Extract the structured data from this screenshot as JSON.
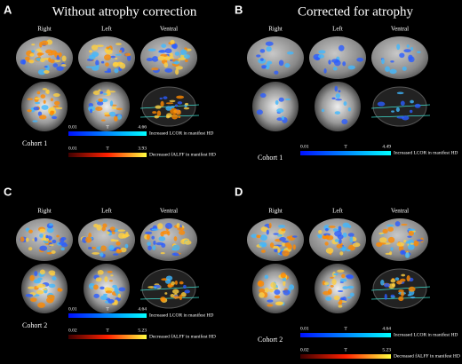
{
  "panels": [
    {
      "letter": "A",
      "title": "Without atrophy correction",
      "views": [
        "Right",
        "Left",
        "Ventral"
      ],
      "cohort": "Cohort 1",
      "colorbars": [
        {
          "min": "0.01",
          "stat": "T",
          "max": "4.66",
          "caption": "Increased LCOR in manifest HD"
        },
        {
          "min": "0.01",
          "stat": "T",
          "max": "3.93",
          "caption": "Decreased fALFF in manifest HD"
        }
      ]
    },
    {
      "letter": "B",
      "title": "Corrected for atrophy",
      "views": [
        "Right",
        "Left",
        "Ventral"
      ],
      "cohort": "Cohort 1",
      "colorbars": [
        {
          "min": "0.01",
          "stat": "T",
          "max": "4.49",
          "caption": "Increased LCOR in manifest HD"
        }
      ]
    },
    {
      "letter": "C",
      "views": [
        "Right",
        "Left",
        "Ventral"
      ],
      "cohort": "Cohort 2",
      "colorbars": [
        {
          "min": "0.01",
          "stat": "T",
          "max": "4.64",
          "caption": "Increased LCOR in manifest HD"
        },
        {
          "min": "0.02",
          "stat": "T",
          "max": "5.23",
          "caption": "Decreased fALFF in manifest HD"
        }
      ]
    },
    {
      "letter": "D",
      "views": [
        "Right",
        "Left",
        "Ventral"
      ],
      "cohort": "Cohort 2",
      "colorbars": [
        {
          "min": "0.01",
          "stat": "T",
          "max": "4.64",
          "caption": "Increased LCOR in manifest HD"
        },
        {
          "min": "0.02",
          "stat": "T",
          "max": "5.23",
          "caption": "Decreased fALFF in manifest HD"
        }
      ]
    }
  ]
}
